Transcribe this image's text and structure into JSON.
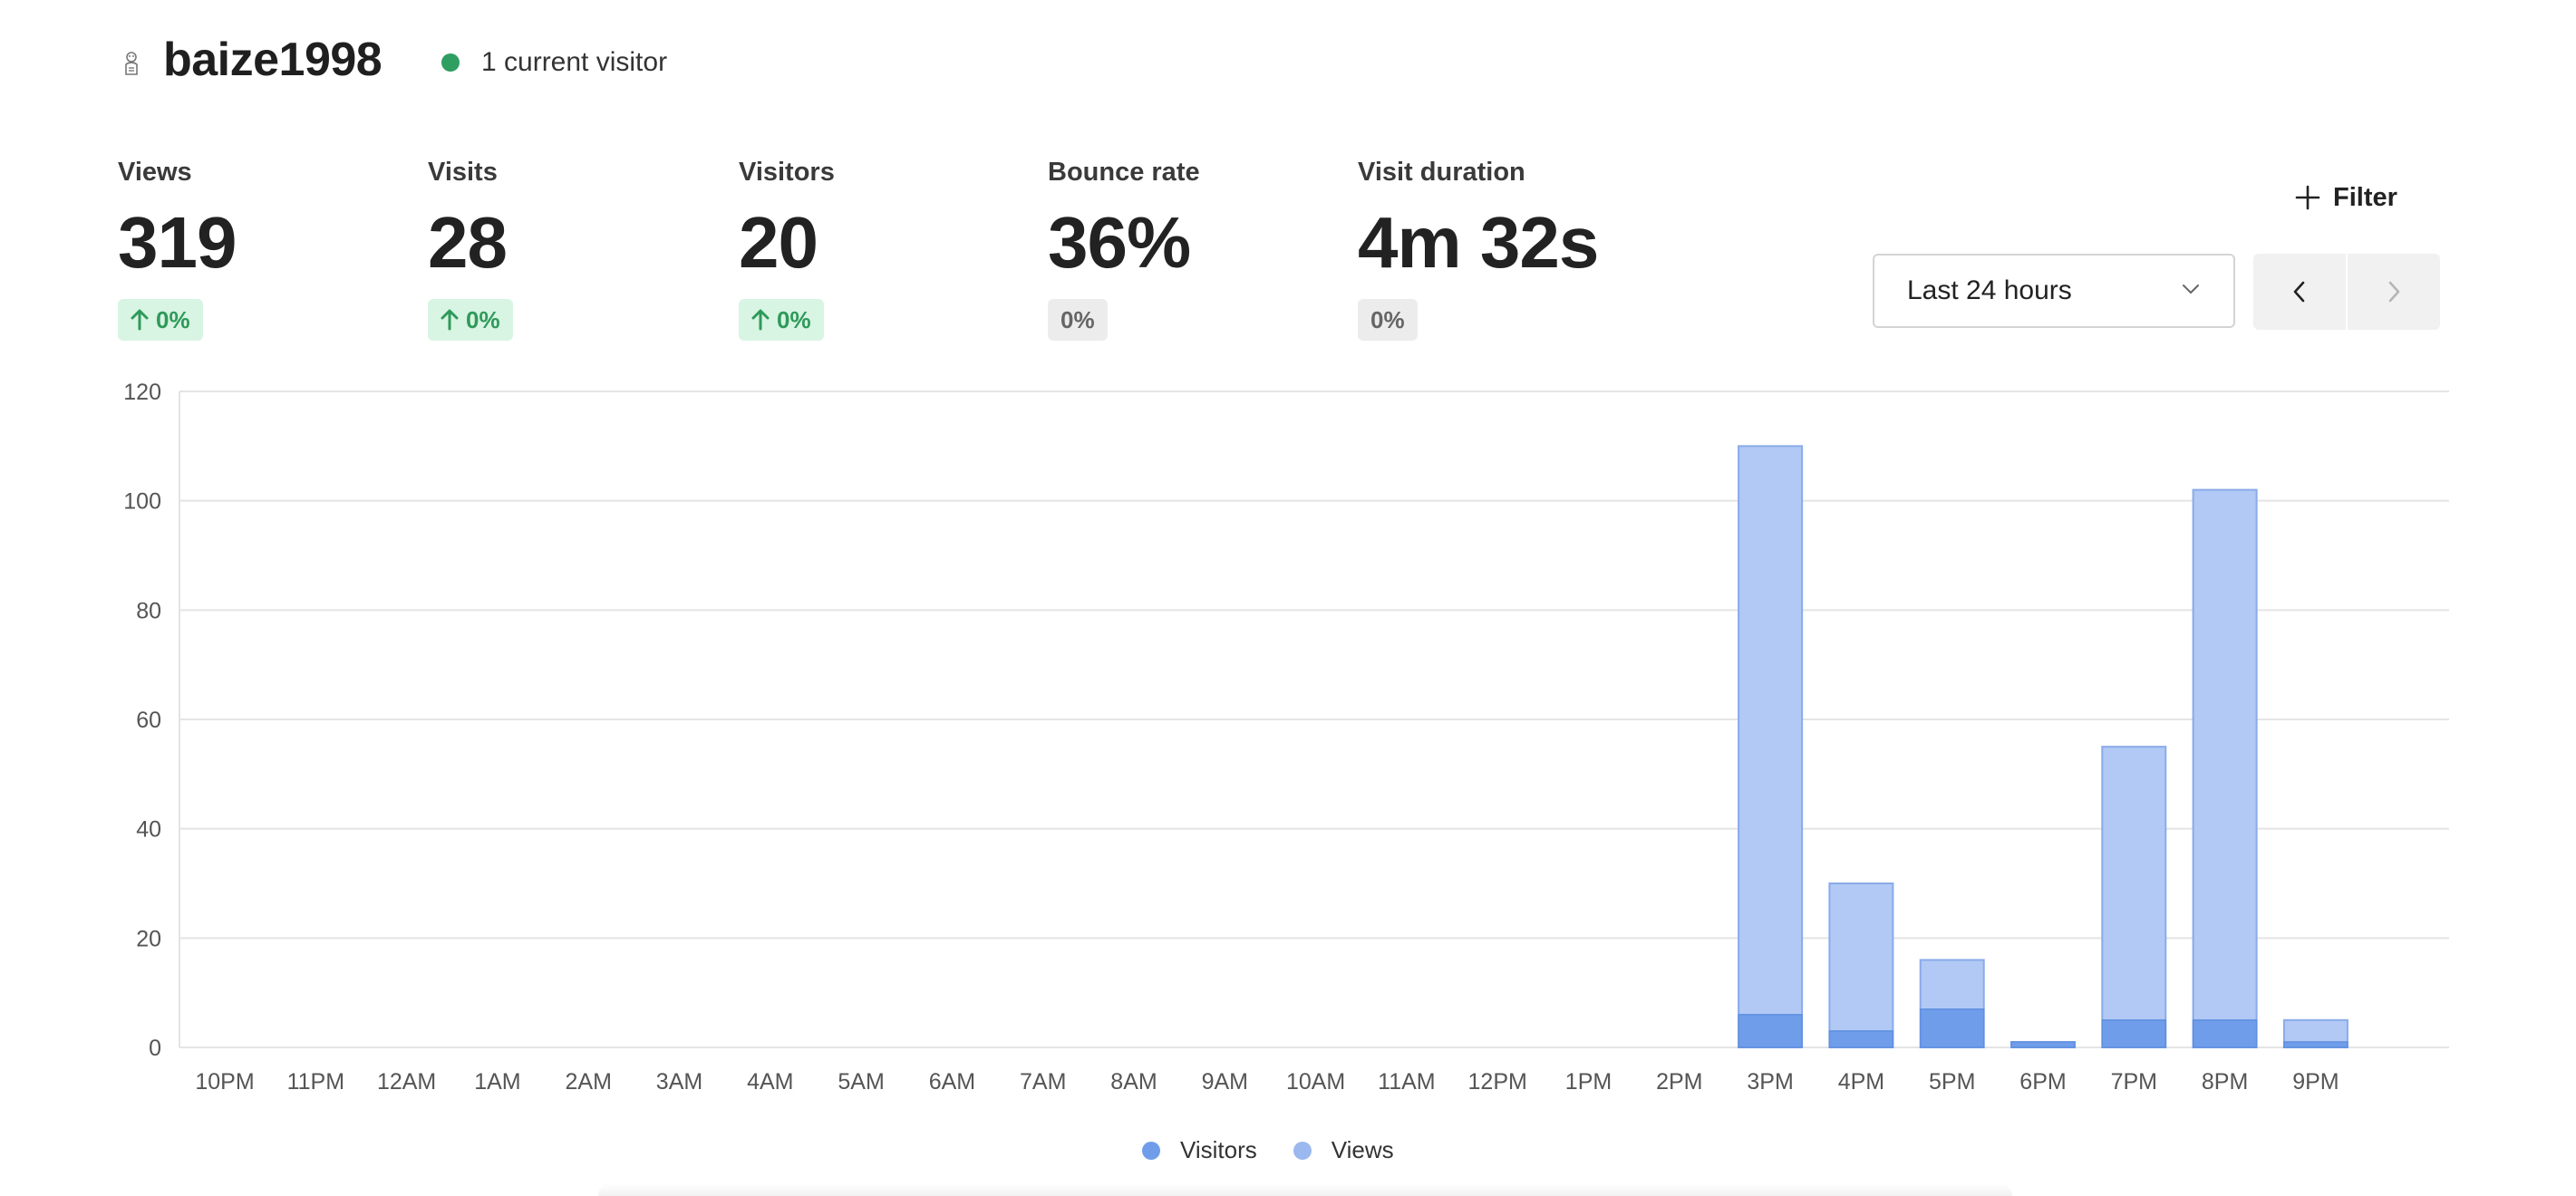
{
  "header": {
    "site_name": "baize1998",
    "current_visitors": "1 current visitor",
    "icon": "site-favicon-icon"
  },
  "metrics": [
    {
      "label": "Views",
      "value": "319",
      "change": "0%",
      "trend": "up"
    },
    {
      "label": "Visits",
      "value": "28",
      "change": "0%",
      "trend": "up"
    },
    {
      "label": "Visitors",
      "value": "20",
      "change": "0%",
      "trend": "up"
    },
    {
      "label": "Bounce rate",
      "value": "36%",
      "change": "0%",
      "trend": "flat"
    },
    {
      "label": "Visit duration",
      "value": "4m 32s",
      "change": "0%",
      "trend": "flat"
    }
  ],
  "controls": {
    "filter_label": "Filter",
    "range_label": "Last 24 hours"
  },
  "colors": {
    "views": "#b1c9f4",
    "views_border": "#89abe9",
    "visitors": "#6f9de9",
    "up_badge_bg": "#d8f4e2",
    "up_badge_text": "#2e9a5a",
    "live_dot": "#2f9e61"
  },
  "chart_data": {
    "type": "bar",
    "stacked_overlay": true,
    "categories": [
      "10PM",
      "11PM",
      "12AM",
      "1AM",
      "2AM",
      "3AM",
      "4AM",
      "5AM",
      "6AM",
      "7AM",
      "8AM",
      "9AM",
      "10AM",
      "11AM",
      "12PM",
      "1PM",
      "2PM",
      "3PM",
      "4PM",
      "5PM",
      "6PM",
      "7PM",
      "8PM",
      "9PM"
    ],
    "series": [
      {
        "name": "Visitors",
        "values": [
          0,
          0,
          0,
          0,
          0,
          0,
          0,
          0,
          0,
          0,
          0,
          0,
          0,
          0,
          0,
          0,
          0,
          6,
          3,
          7,
          1,
          5,
          5,
          1
        ]
      },
      {
        "name": "Views",
        "values": [
          0,
          0,
          0,
          0,
          0,
          0,
          0,
          0,
          0,
          0,
          0,
          0,
          0,
          0,
          0,
          0,
          0,
          110,
          30,
          16,
          1,
          55,
          102,
          5
        ]
      }
    ],
    "yticks": [
      0,
      20,
      40,
      60,
      80,
      100,
      120
    ],
    "ylim": [
      0,
      120
    ],
    "grid": true,
    "legend_position": "bottom-center"
  }
}
